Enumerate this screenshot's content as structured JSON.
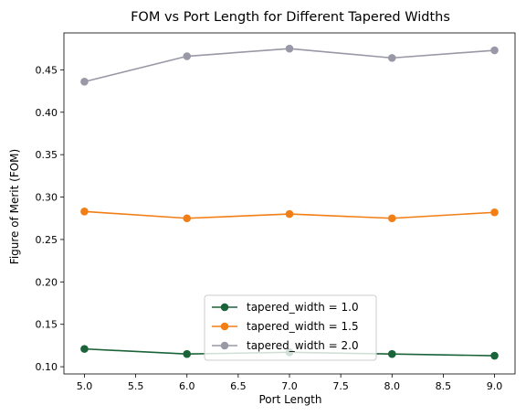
{
  "chart_data": {
    "type": "line",
    "title": "FOM vs Port Length for Different Tapered Widths",
    "xlabel": "Port Length",
    "ylabel": "Figure of Merit (FOM)",
    "x": [
      5.0,
      6.0,
      7.0,
      8.0,
      9.0
    ],
    "xlim": [
      4.8,
      9.2
    ],
    "ylim": [
      0.0915,
      0.4935
    ],
    "xticks": [
      5.0,
      5.5,
      6.0,
      6.5,
      7.0,
      7.5,
      8.0,
      8.5,
      9.0
    ],
    "xtick_labels": [
      "5.0",
      "5.5",
      "6.0",
      "6.5",
      "7.0",
      "7.5",
      "8.0",
      "8.5",
      "9.0"
    ],
    "yticks": [
      0.1,
      0.15,
      0.2,
      0.25,
      0.3,
      0.35,
      0.4,
      0.45
    ],
    "ytick_labels": [
      "0.10",
      "0.15",
      "0.20",
      "0.25",
      "0.30",
      "0.35",
      "0.40",
      "0.45"
    ],
    "grid": false,
    "legend_position": "bottom-center",
    "series": [
      {
        "name": "tapered_width = 1.0",
        "color": "#1b6338",
        "values": [
          0.121,
          0.115,
          0.117,
          0.115,
          0.113
        ]
      },
      {
        "name": "tapered_width = 1.5",
        "color": "#f27e16",
        "values": [
          0.283,
          0.275,
          0.28,
          0.275,
          0.282
        ]
      },
      {
        "name": "tapered_width = 2.0",
        "color": "#9898a6",
        "values": [
          0.436,
          0.466,
          0.475,
          0.464,
          0.473
        ]
      }
    ]
  }
}
